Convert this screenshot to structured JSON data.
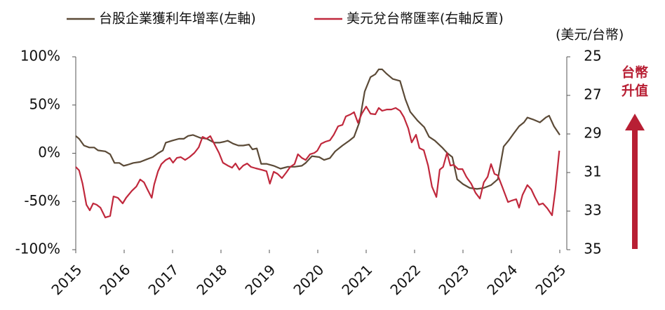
{
  "chart_data": {
    "type": "line",
    "legend": "top",
    "y2_label": "(美元/台幣)",
    "annotation": [
      "台幣",
      "升值"
    ],
    "annotation_color": "#b81f34",
    "xlim": [
      2015,
      2025
    ],
    "xticks": [
      2015,
      2016,
      2017,
      2018,
      2019,
      2020,
      2021,
      2022,
      2023,
      2024,
      2025
    ],
    "ylim": [
      -100,
      100
    ],
    "yticks": [
      {
        "value": 100,
        "label": "100%"
      },
      {
        "value": 50,
        "label": "50%"
      },
      {
        "value": 0,
        "label": "0%"
      },
      {
        "value": -50,
        "label": "-50%"
      },
      {
        "value": -100,
        "label": "-100%"
      }
    ],
    "y2lim": [
      25,
      35
    ],
    "y2_reversed": true,
    "y2ticks": [
      25,
      27,
      29,
      31,
      33,
      35
    ],
    "series": [
      {
        "name": "台股企業獲利年增率(左軸)",
        "color": "#5b4a37",
        "axis": "y",
        "x": [
          2015,
          2015.07,
          2015.17,
          2015.28,
          2015.38,
          2015.46,
          2015.61,
          2015.71,
          2015.8,
          2015.9,
          2015.99,
          2016.07,
          2016.19,
          2016.33,
          2016.48,
          2016.59,
          2016.7,
          2016.8,
          2016.86,
          2016.99,
          2017.13,
          2017.23,
          2017.32,
          2017.42,
          2017.57,
          2017.71,
          2017.86,
          2017.97,
          2018.07,
          2018.14,
          2018.25,
          2018.36,
          2018.46,
          2018.58,
          2018.65,
          2018.74,
          2018.83,
          2018.94,
          2019.09,
          2019.23,
          2019.38,
          2019.52,
          2019.67,
          2019.75,
          2019.88,
          2020.03,
          2020.13,
          2020.25,
          2020.36,
          2020.51,
          2020.65,
          2020.75,
          2020.86,
          2020.97,
          2021.09,
          2021.19,
          2021.26,
          2021.33,
          2021.41,
          2021.55,
          2021.7,
          2021.81,
          2021.91,
          2022.06,
          2022.2,
          2022.3,
          2022.42,
          2022.57,
          2022.68,
          2022.78,
          2022.88,
          2023,
          2023.14,
          2023.29,
          2023.43,
          2023.58,
          2023.72,
          2023.84,
          2023.94,
          2024.04,
          2024.16,
          2024.26,
          2024.33,
          2024.45,
          2024.59,
          2024.71,
          2024.78,
          2024.88,
          2025
        ],
        "values": [
          18,
          15,
          8,
          6,
          6,
          3,
          2,
          -1,
          -10,
          -10,
          -13,
          -12,
          -10,
          -9,
          -6,
          -4,
          0,
          3,
          11,
          13,
          15,
          15,
          18,
          19,
          16,
          15,
          11,
          11,
          12,
          13,
          10,
          8,
          8,
          9,
          4,
          5,
          -11,
          -11,
          -13,
          -16,
          -14,
          -14,
          -13,
          -10,
          -3,
          -4,
          -7,
          -5,
          2,
          8,
          13,
          17,
          32,
          64,
          79,
          82,
          87,
          87,
          83,
          77,
          75,
          56,
          43,
          34,
          27,
          17,
          13,
          6,
          0,
          -4,
          -27,
          -32,
          -36,
          -37,
          -36,
          -33,
          -27,
          7,
          13,
          20,
          28,
          32,
          37,
          35,
          32,
          37,
          39,
          28,
          19
        ]
      },
      {
        "name": "美元兌台幣匯率(右軸反置)",
        "color": "#c0283c",
        "axis": "y2",
        "x": [
          2015,
          2015.07,
          2015.14,
          2015.22,
          2015.29,
          2015.36,
          2015.43,
          2015.51,
          2015.61,
          2015.71,
          2015.78,
          2015.87,
          2015.97,
          2016.04,
          2016.16,
          2016.25,
          2016.33,
          2016.41,
          2016.48,
          2016.57,
          2016.62,
          2016.7,
          2016.77,
          2016.86,
          2016.94,
          2017.01,
          2017.09,
          2017.17,
          2017.26,
          2017.35,
          2017.45,
          2017.54,
          2017.62,
          2017.7,
          2017.78,
          2017.87,
          2017.96,
          2018.04,
          2018.14,
          2018.23,
          2018.3,
          2018.38,
          2018.46,
          2018.54,
          2018.62,
          2018.72,
          2018.83,
          2018.94,
          2019.01,
          2019.09,
          2019.17,
          2019.26,
          2019.35,
          2019.43,
          2019.52,
          2019.59,
          2019.67,
          2019.75,
          2019.84,
          2019.93,
          2019.99,
          2020.07,
          2020.16,
          2020.25,
          2020.33,
          2020.42,
          2020.51,
          2020.58,
          2020.68,
          2020.75,
          2020.83,
          2020.91,
          2021,
          2021.09,
          2021.19,
          2021.26,
          2021.33,
          2021.43,
          2021.52,
          2021.61,
          2021.7,
          2021.78,
          2021.87,
          2021.94,
          2022.03,
          2022.1,
          2022.19,
          2022.28,
          2022.36,
          2022.45,
          2022.52,
          2022.59,
          2022.67,
          2022.74,
          2022.81,
          2022.9,
          2022.99,
          2023.07,
          2023.17,
          2023.26,
          2023.35,
          2023.43,
          2023.51,
          2023.58,
          2023.65,
          2023.72,
          2023.81,
          2023.93,
          2024.01,
          2024.1,
          2024.16,
          2024.23,
          2024.33,
          2024.41,
          2024.48,
          2024.57,
          2024.65,
          2024.74,
          2024.84,
          2024.91,
          2024.99
        ],
        "values": [
          30.71,
          30.89,
          31.58,
          32.67,
          32.96,
          32.6,
          32.67,
          32.82,
          33.33,
          33.25,
          32.24,
          32.31,
          32.6,
          32.31,
          31.95,
          31.73,
          31.36,
          31.51,
          31.87,
          32.31,
          31.62,
          30.93,
          30.56,
          30.35,
          30.24,
          30.49,
          30.24,
          30.2,
          30.35,
          30.2,
          29.98,
          29.69,
          29.15,
          29.25,
          29.11,
          29.55,
          29.98,
          30.49,
          30.64,
          30.75,
          30.53,
          30.85,
          30.64,
          30.53,
          30.71,
          30.78,
          30.85,
          30.93,
          31.58,
          30.96,
          31.07,
          31.29,
          31,
          30.71,
          30.56,
          30.05,
          30.24,
          30.35,
          30.05,
          29.98,
          29.87,
          29.51,
          29.4,
          29.33,
          29.04,
          28.6,
          28.53,
          28.09,
          27.98,
          27.87,
          28.42,
          27.95,
          27.58,
          27.95,
          27.98,
          27.65,
          27.8,
          27.73,
          27.73,
          27.65,
          27.8,
          28.13,
          28.71,
          29.44,
          29.04,
          29.73,
          29.84,
          30.64,
          31.73,
          32.27,
          30.85,
          30.71,
          29.98,
          30.64,
          30.6,
          30.82,
          30.82,
          31.22,
          31.58,
          32.05,
          32.35,
          31.51,
          31.22,
          30.56,
          31.07,
          31.15,
          31.73,
          32.53,
          32.45,
          32.38,
          32.82,
          32.16,
          31.65,
          31.87,
          32.24,
          32.67,
          32.6,
          32.85,
          33.22,
          31.87,
          29.87
        ]
      }
    ]
  }
}
